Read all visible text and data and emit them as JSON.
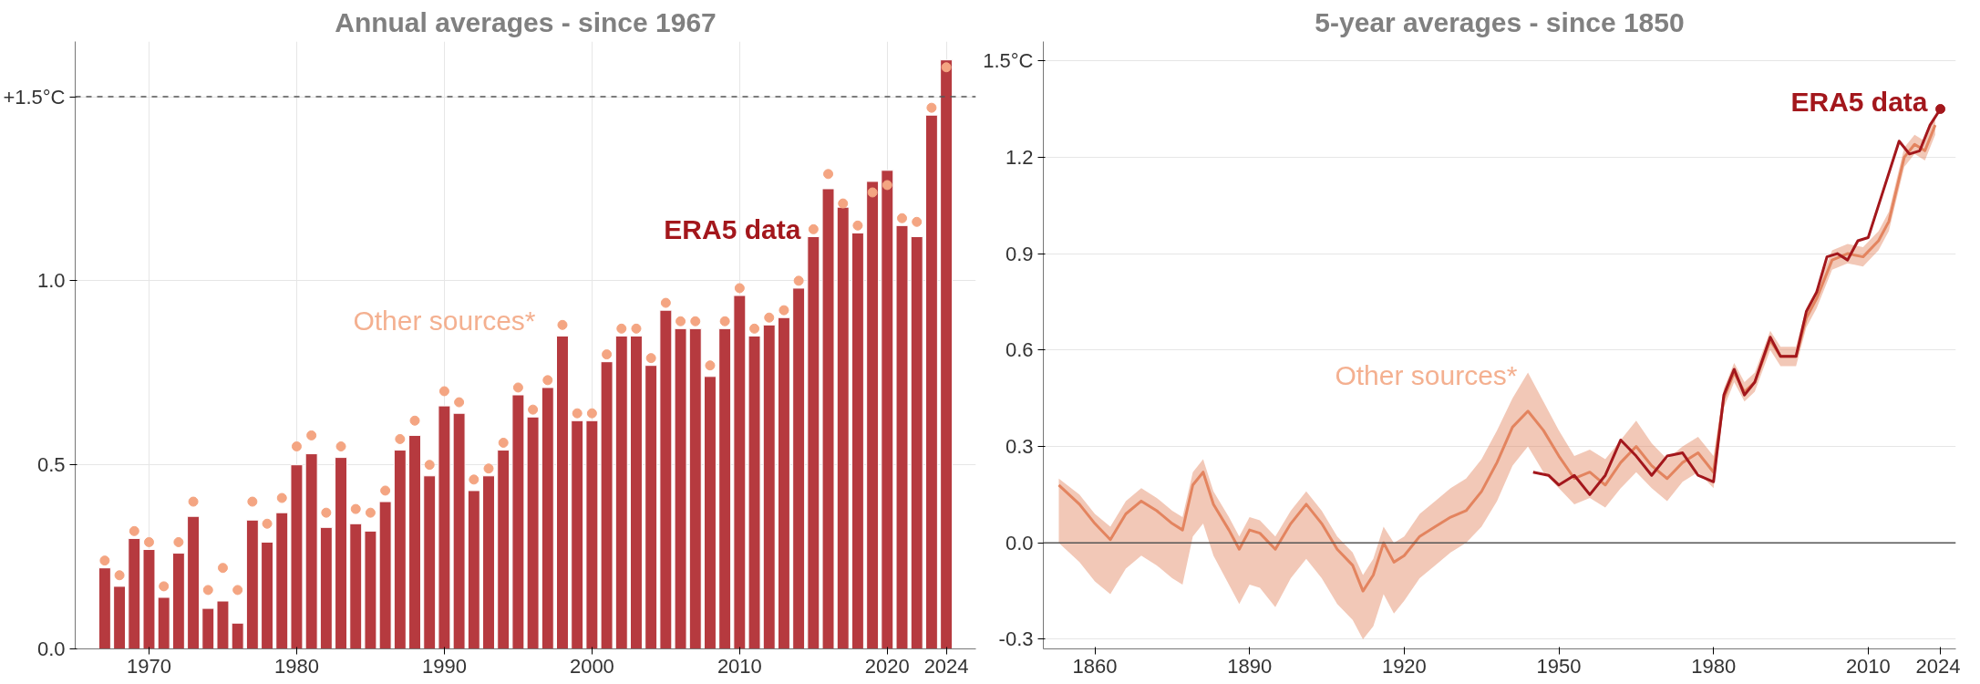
{
  "chart_data": [
    {
      "type": "bar",
      "title": "Annual averages - since 1967",
      "x": [
        1967,
        1968,
        1969,
        1970,
        1971,
        1972,
        1973,
        1974,
        1975,
        1976,
        1977,
        1978,
        1979,
        1980,
        1981,
        1982,
        1983,
        1984,
        1985,
        1986,
        1987,
        1988,
        1989,
        1990,
        1991,
        1992,
        1993,
        1994,
        1995,
        1996,
        1997,
        1998,
        1999,
        2000,
        2001,
        2002,
        2003,
        2004,
        2005,
        2006,
        2007,
        2008,
        2009,
        2010,
        2011,
        2012,
        2013,
        2014,
        2015,
        2016,
        2017,
        2018,
        2019,
        2020,
        2021,
        2022,
        2023,
        2024
      ],
      "series": [
        {
          "color": "#b63a3f",
          "values": [
            0.22,
            0.17,
            0.3,
            0.27,
            0.14,
            0.26,
            0.36,
            0.11,
            0.13,
            0.07,
            0.35,
            0.29,
            0.37,
            0.5,
            0.53,
            0.33,
            0.52,
            0.34,
            0.32,
            0.4,
            0.54,
            0.58,
            0.47,
            0.66,
            0.64,
            0.43,
            0.47,
            0.54,
            0.69,
            0.63,
            0.71,
            0.85,
            0.62,
            0.62,
            0.78,
            0.85,
            0.85,
            0.77,
            0.92,
            0.87,
            0.87,
            0.74,
            0.87,
            0.96,
            0.85,
            0.88,
            0.9,
            0.98,
            1.12,
            1.25,
            1.2,
            1.13,
            1.27,
            1.3,
            1.15,
            1.12,
            1.45,
            1.6
          ]
        },
        {
          "type": "scatter",
          "marker": "circle",
          "color": "#f4a582",
          "values": [
            0.24,
            0.2,
            0.32,
            0.29,
            0.17,
            0.29,
            0.4,
            0.16,
            0.22,
            0.16,
            0.4,
            0.34,
            0.41,
            0.55,
            0.58,
            0.37,
            0.55,
            0.38,
            0.37,
            0.43,
            0.57,
            0.62,
            0.5,
            0.7,
            0.67,
            0.46,
            0.49,
            0.56,
            0.71,
            0.65,
            0.73,
            0.88,
            0.64,
            0.64,
            0.8,
            0.87,
            0.87,
            0.79,
            0.94,
            0.89,
            0.89,
            0.77,
            0.89,
            0.98,
            0.87,
            0.9,
            0.92,
            1.0,
            1.14,
            1.29,
            1.21,
            1.15,
            1.24,
            1.26,
            1.17,
            1.16,
            1.47,
            1.58
          ]
        }
      ],
      "xlim": [
        1965,
        2026
      ],
      "xticks": [
        1970,
        1980,
        1990,
        2000,
        2010,
        2020,
        2024
      ],
      "ylim": [
        0,
        1.65
      ],
      "yticks": [
        {
          "value": 0,
          "label": "0.0"
        },
        0.5,
        {
          "value": 1,
          "label": "1.0"
        },
        {
          "value": 1.5,
          "label": "+1.5°C"
        }
      ],
      "grid": true,
      "ref_lines": [
        {
          "axis": "y",
          "value": 1.5,
          "label": null,
          "color": "#555555",
          "line_style": "dashed"
        }
      ],
      "annotations": [
        {
          "text": "ERA5 data",
          "x": 2015,
          "y": 1.12
        },
        "Other sources*"
      ]
    },
    {
      "type": "line",
      "title": "5-year averages - since 1850",
      "series": [
        {
          "color": "#e3845f",
          "x": [
            1853,
            1857,
            1860,
            1863,
            1866,
            1869,
            1872,
            1875,
            1877,
            1879,
            1881,
            1883,
            1886,
            1888,
            1890,
            1892,
            1895,
            1898,
            1901,
            1904,
            1907,
            1910,
            1912,
            1914,
            1916,
            1918,
            1920,
            1923,
            1926,
            1929,
            1932,
            1935,
            1938,
            1941,
            1944,
            1947,
            1950,
            1953,
            1956,
            1959,
            1962,
            1965,
            1968,
            1971,
            1974,
            1977,
            1980,
            1982,
            1984,
            1986,
            1988,
            1991,
            1993,
            1996,
            1998,
            2000,
            2003,
            2006,
            2009,
            2012,
            2014,
            2017,
            2019,
            2021,
            2023
          ],
          "values": [
            0.18,
            0.12,
            0.06,
            0.01,
            0.09,
            0.13,
            0.1,
            0.06,
            0.04,
            0.18,
            0.22,
            0.12,
            0.04,
            -0.02,
            0.04,
            0.03,
            -0.02,
            0.06,
            0.12,
            0.06,
            -0.02,
            -0.07,
            -0.15,
            -0.1,
            0.0,
            -0.06,
            -0.04,
            0.02,
            0.05,
            0.08,
            0.1,
            0.16,
            0.25,
            0.36,
            0.41,
            0.35,
            0.27,
            0.2,
            0.22,
            0.18,
            0.25,
            0.3,
            0.24,
            0.2,
            0.25,
            0.28,
            0.22,
            0.45,
            0.53,
            0.47,
            0.5,
            0.63,
            0.58,
            0.58,
            0.7,
            0.76,
            0.88,
            0.9,
            0.89,
            0.94,
            1.0,
            1.2,
            1.24,
            1.22,
            1.3
          ],
          "lower": [
            0.0,
            -0.06,
            -0.12,
            -0.16,
            -0.08,
            -0.04,
            -0.07,
            -0.11,
            -0.13,
            0.02,
            0.06,
            -0.04,
            -0.13,
            -0.19,
            -0.13,
            -0.14,
            -0.2,
            -0.11,
            -0.05,
            -0.11,
            -0.19,
            -0.24,
            -0.3,
            -0.26,
            -0.16,
            -0.22,
            -0.18,
            -0.11,
            -0.07,
            -0.03,
            0.0,
            0.05,
            0.13,
            0.24,
            0.3,
            0.22,
            0.17,
            0.12,
            0.14,
            0.11,
            0.17,
            0.22,
            0.17,
            0.13,
            0.19,
            0.22,
            0.17,
            0.42,
            0.5,
            0.44,
            0.47,
            0.6,
            0.55,
            0.55,
            0.67,
            0.73,
            0.85,
            0.87,
            0.86,
            0.91,
            0.97,
            1.17,
            1.21,
            1.19,
            1.27
          ],
          "upper": [
            0.2,
            0.15,
            0.09,
            0.05,
            0.13,
            0.17,
            0.14,
            0.1,
            0.08,
            0.22,
            0.26,
            0.16,
            0.08,
            0.02,
            0.08,
            0.07,
            0.02,
            0.1,
            0.16,
            0.1,
            0.02,
            -0.03,
            -0.1,
            -0.05,
            0.05,
            0.0,
            0.02,
            0.09,
            0.13,
            0.17,
            0.2,
            0.26,
            0.35,
            0.45,
            0.53,
            0.44,
            0.35,
            0.27,
            0.29,
            0.26,
            0.32,
            0.38,
            0.31,
            0.26,
            0.3,
            0.33,
            0.27,
            0.48,
            0.56,
            0.5,
            0.53,
            0.66,
            0.61,
            0.61,
            0.73,
            0.79,
            0.91,
            0.93,
            0.92,
            0.97,
            1.03,
            1.23,
            1.27,
            1.25,
            1.33
          ]
        },
        {
          "color": "#a3171c",
          "x": [
            1945,
            1948,
            1950,
            1953,
            1956,
            1959,
            1962,
            1965,
            1968,
            1971,
            1974,
            1977,
            1980,
            1982,
            1984,
            1986,
            1988,
            1991,
            1993,
            1996,
            1998,
            2000,
            2002,
            2004,
            2006,
            2008,
            2010,
            2013,
            2016,
            2018,
            2020,
            2022,
            2024
          ],
          "values": [
            0.22,
            0.21,
            0.18,
            0.21,
            0.15,
            0.21,
            0.32,
            0.27,
            0.21,
            0.27,
            0.28,
            0.21,
            0.19,
            0.46,
            0.54,
            0.46,
            0.5,
            0.64,
            0.58,
            0.58,
            0.72,
            0.78,
            0.89,
            0.9,
            0.88,
            0.94,
            0.95,
            1.1,
            1.25,
            1.21,
            1.22,
            1.3,
            1.35
          ]
        },
        {
          "type": "scatter",
          "marker": "circle",
          "color": "#a3171c",
          "x": [
            2024
          ],
          "values": [
            1.35
          ]
        }
      ],
      "xlim": [
        1850,
        2027
      ],
      "xticks": [
        1860,
        1890,
        1920,
        1950,
        1980,
        2010,
        2024
      ],
      "ylim": [
        -0.33,
        1.56
      ],
      "yticks": [
        {
          "value": -0.3,
          "label": "-0.3"
        },
        {
          "value": 0,
          "label": "0.0"
        },
        0.3,
        0.6,
        0.9,
        1.2,
        {
          "value": 1.5,
          "label": "1.5°C"
        }
      ],
      "grid": "y",
      "ref_lines": [
        {
          "axis": "y",
          "value": 0,
          "label": null,
          "color": "#555555",
          "line_style": "solid"
        }
      ],
      "annotations": [
        {
          "text": "ERA5 data",
          "x": 2024,
          "y": 1.35
        },
        "Other sources*"
      ]
    }
  ]
}
